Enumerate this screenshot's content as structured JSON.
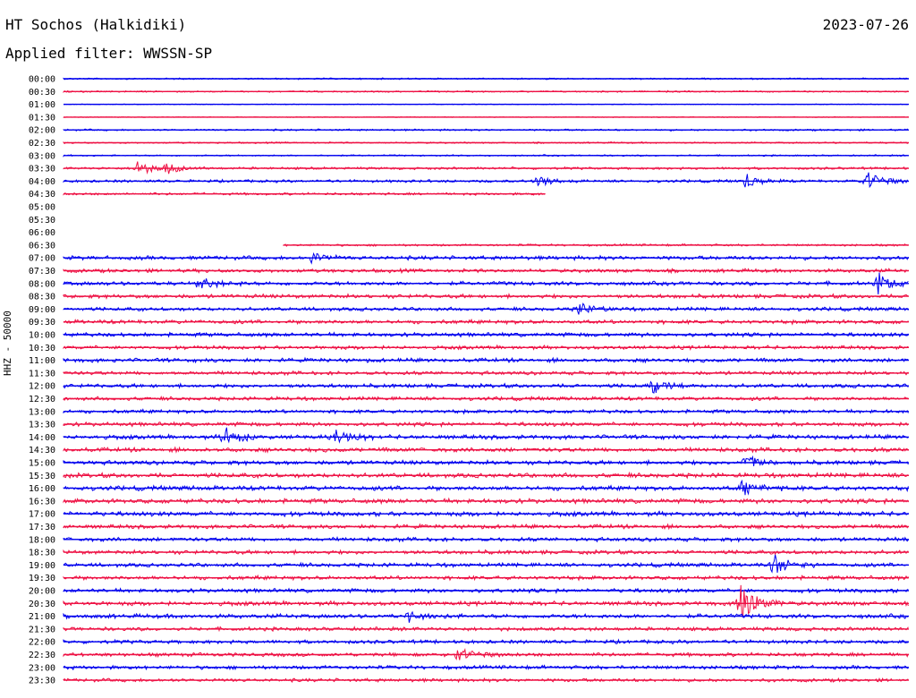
{
  "header": {
    "station": "HT Sochos (Halkidiki)",
    "date": "2023-07-26",
    "filter": "Applied filter: WWSSN-SP"
  },
  "side_label": "HHZ - 50000",
  "colors": {
    "even_line": "#0000ee",
    "odd_line": "#ee1144"
  },
  "chart_data": {
    "type": "line",
    "description_kind": "helicorder",
    "row_labels": [
      "00:00",
      "00:30",
      "01:00",
      "01:30",
      "02:00",
      "02:30",
      "03:00",
      "03:30",
      "04:00",
      "04:30",
      "05:00",
      "05:30",
      "06:00",
      "06:30",
      "07:00",
      "07:30",
      "08:00",
      "08:30",
      "09:00",
      "09:30",
      "10:00",
      "10:30",
      "11:00",
      "11:30",
      "12:00",
      "12:30",
      "13:00",
      "13:30",
      "14:00",
      "14:30",
      "15:00",
      "15:30",
      "16:00",
      "16:30",
      "17:00",
      "17:30",
      "18:00",
      "18:30",
      "19:00",
      "19:30",
      "20:00",
      "20:30",
      "21:00",
      "21:30",
      "22:00",
      "22:30",
      "23:00",
      "23:30"
    ],
    "row_minutes": 30,
    "coverage": [
      {
        "row": "04:30",
        "end_min": 17.1
      },
      {
        "row": "05:00",
        "end_min": 0
      },
      {
        "row": "05:30",
        "end_min": 0
      },
      {
        "row": "06:00",
        "end_min": 0
      },
      {
        "row": "06:30",
        "start_min": 7.8
      }
    ],
    "noise_levels": [
      1,
      1,
      0.5,
      0.5,
      1.2,
      1,
      1,
      1.6,
      1.8,
      1.6,
      0,
      0,
      0,
      1.4,
      2.6,
      2.4,
      2.6,
      2.6,
      2.4,
      2.6,
      2.6,
      2.4,
      2.6,
      2.4,
      2.6,
      2.4,
      2.4,
      2.6,
      2.8,
      2.8,
      2.8,
      3,
      3,
      3,
      3,
      2.6,
      2.6,
      2.6,
      2.6,
      2.6,
      2.6,
      2.8,
      2.8,
      2.4,
      2.4,
      2.4,
      2.4,
      2.2
    ],
    "events": [
      {
        "row": "03:30",
        "min": 2.6,
        "amp": 10
      },
      {
        "row": "03:30",
        "min": 3.7,
        "amp": 8
      },
      {
        "row": "04:00",
        "min": 16.8,
        "amp": 8
      },
      {
        "row": "04:00",
        "min": 24.2,
        "amp": 10
      },
      {
        "row": "04:00",
        "min": 28.5,
        "amp": 14
      },
      {
        "row": "07:00",
        "min": 8.8,
        "amp": 8
      },
      {
        "row": "08:00",
        "min": 4.8,
        "amp": 8
      },
      {
        "row": "08:00",
        "min": 28.9,
        "amp": 12
      },
      {
        "row": "09:00",
        "min": 18.3,
        "amp": 8
      },
      {
        "row": "12:00",
        "min": 20.9,
        "amp": 9
      },
      {
        "row": "14:00",
        "min": 5.7,
        "amp": 14
      },
      {
        "row": "14:00",
        "min": 9.7,
        "amp": 12
      },
      {
        "row": "15:00",
        "min": 24.2,
        "amp": 10
      },
      {
        "row": "16:00",
        "min": 24.1,
        "amp": 8
      },
      {
        "row": "19:00",
        "min": 25.2,
        "amp": 16
      },
      {
        "row": "20:30",
        "min": 24.0,
        "amp": 30
      },
      {
        "row": "21:00",
        "min": 12.3,
        "amp": 9
      },
      {
        "row": "22:30",
        "min": 14.0,
        "amp": 10
      }
    ]
  }
}
